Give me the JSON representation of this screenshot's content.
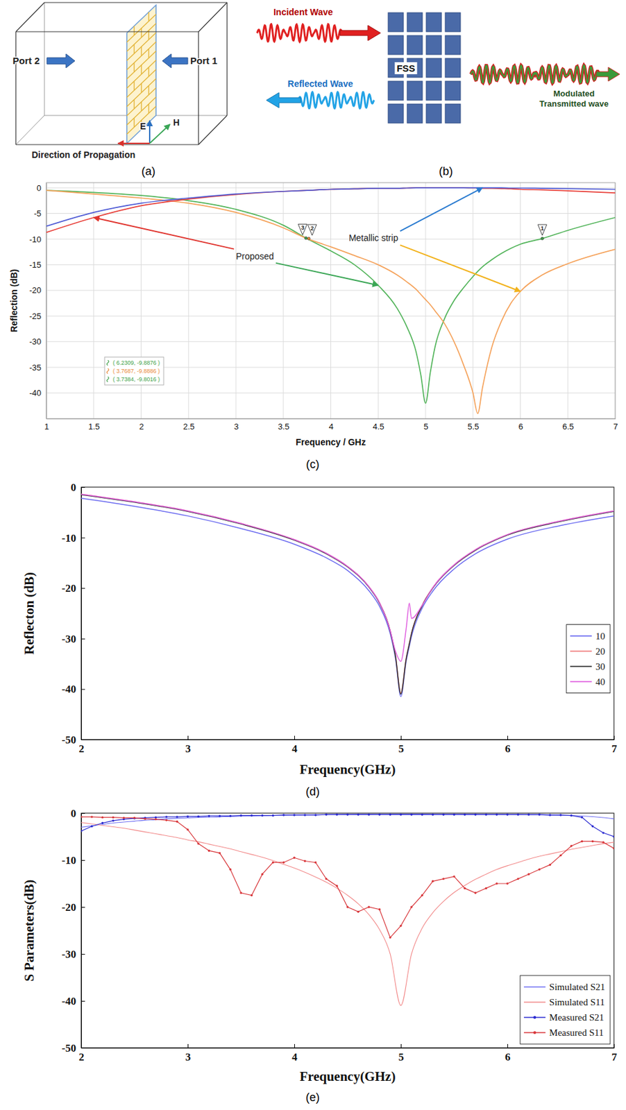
{
  "diagrams": [
    {
      "caption": "(a)",
      "labels": {
        "port_2": "Port 2",
        "port_1": "Port 1",
        "e_field": "E",
        "h_field": "H",
        "propagation": "Direction of Propagation"
      }
    },
    {
      "caption": "(b)",
      "labels": {
        "incident": "Incident Wave",
        "fss": "FSS",
        "reflected": "Reflected Wave",
        "transmitted": "Modulated Transmitted wave"
      }
    }
  ],
  "chart_data": [
    {
      "type": "line",
      "caption": "(c)",
      "x_label": "Frequency / GHz",
      "y_label": "Reflection (dB)",
      "xlim": [
        1,
        7
      ],
      "ylim": [
        -45,
        1
      ],
      "xticks": [
        1,
        1.5,
        2,
        2.5,
        3,
        3.5,
        4,
        4.5,
        5,
        5.5,
        6,
        6.5,
        7
      ],
      "yticks": [
        0,
        -5,
        -10,
        -15,
        -20,
        -25,
        -30,
        -35,
        -40
      ],
      "grid": true,
      "x": [
        1,
        1.5,
        2,
        2.5,
        3,
        3.5,
        3.75,
        4,
        4.25,
        4.5,
        4.7,
        4.8,
        4.9,
        4.95,
        5,
        5.05,
        5.1,
        5.2,
        5.3,
        5.4,
        5.5,
        5.55,
        5.6,
        5.7,
        5.8,
        5.9,
        6,
        6.23,
        6.5,
        7
      ],
      "series": [
        {
          "color": "#52b45a",
          "values": [
            -0.5,
            -0.9,
            -1.5,
            -2.5,
            -4.2,
            -7.3,
            -9.9,
            -12.3,
            -15,
            -19,
            -23.5,
            -27,
            -32,
            -36.5,
            -42,
            -36,
            -31,
            -25.5,
            -22,
            -19.5,
            -17.3,
            -16.3,
            -15.4,
            -14,
            -12.8,
            -11.8,
            -11,
            -9.9,
            -8.3,
            -5.8
          ]
        },
        {
          "color": "#f5a35c",
          "values": [
            -0.5,
            -1.2,
            -2,
            -3,
            -4.8,
            -7.8,
            -9.9,
            -11.5,
            -13.2,
            -15,
            -17,
            -18.3,
            -19.8,
            -20.8,
            -21.8,
            -22.8,
            -24,
            -26.5,
            -30,
            -34.5,
            -40,
            -44,
            -39,
            -31,
            -26,
            -22.5,
            -20.2,
            -17,
            -14.8,
            -12
          ]
        },
        {
          "color": "#e8403a",
          "values": [
            -8.7,
            -5.8,
            -3.5,
            -2.2,
            -1.3,
            -0.7,
            -0.5,
            -0.3,
            -0.2,
            -0.1,
            -0.1,
            -0.05,
            0,
            0,
            0,
            0,
            0,
            0,
            0,
            0,
            -0.05,
            -0.05,
            -0.1,
            -0.1,
            -0.15,
            -0.2,
            -0.3,
            -0.4,
            -0.6,
            -1
          ]
        },
        {
          "color": "#4f5bd5",
          "values": [
            -7.5,
            -4.8,
            -3,
            -2,
            -1.2,
            -0.7,
            -0.5,
            -0.3,
            -0.2,
            -0.1,
            -0.1,
            -0.05,
            0,
            0,
            0,
            0,
            0,
            0,
            0,
            0,
            0,
            0,
            0,
            0,
            0,
            -0.05,
            -0.05,
            -0.1,
            -0.15,
            -0.3
          ]
        }
      ],
      "markers": [
        {
          "label": "1",
          "x": 6.2309,
          "y": -9.8876,
          "readout": "( 6.2309, -9.8876 )",
          "color": "#3f9f48"
        },
        {
          "label": "2",
          "x": 3.7687,
          "y": -9.8886,
          "readout": "( 3.7687, -9.8886 )",
          "color": "#e8893a"
        },
        {
          "label": "3",
          "x": 3.7384,
          "y": -9.8016,
          "readout": "( 3.7384, -9.8016 )",
          "color": "#3f9f48"
        }
      ],
      "annotations": [
        {
          "text": "Proposed",
          "x": 3.2,
          "y": -13.3
        },
        {
          "text": "Metallic strip",
          "x": 4.45,
          "y": -9.8
        }
      ]
    },
    {
      "type": "line",
      "caption": "(d)",
      "x_label": "Frequency(GHz)",
      "y_label": "Reflecton (dB)",
      "xlim": [
        2,
        7
      ],
      "ylim": [
        -50,
        0
      ],
      "xticks": [
        2,
        3,
        4,
        5,
        6,
        7
      ],
      "yticks": [
        0,
        -10,
        -20,
        -30,
        -40,
        -50
      ],
      "legend": "right",
      "x": [
        2,
        2.5,
        3,
        3.5,
        4,
        4.3,
        4.5,
        4.7,
        4.8,
        4.9,
        4.95,
        5,
        5.05,
        5.08,
        5.1,
        5.2,
        5.3,
        5.5,
        5.7,
        6,
        6.5,
        7
      ],
      "series": [
        {
          "name": "10",
          "color": "#6b6bf0",
          "values": [
            -2.2,
            -3.8,
            -5.7,
            -8.2,
            -11.3,
            -14,
            -16.5,
            -20.5,
            -23.6,
            -29,
            -34,
            -41.5,
            -34.5,
            -31.5,
            -29.6,
            -24,
            -20.6,
            -16.2,
            -13.2,
            -10.3,
            -7.6,
            -5.7
          ]
        },
        {
          "name": "20",
          "color": "#f08080",
          "values": [
            -1.4,
            -2.9,
            -4.7,
            -7.2,
            -10.4,
            -13.1,
            -15.7,
            -19.7,
            -22.9,
            -28.4,
            -33.4,
            -40.8,
            -33.9,
            -30.9,
            -28.9,
            -23.4,
            -19.9,
            -15.4,
            -12.4,
            -9.4,
            -6.7,
            -4.7
          ]
        },
        {
          "name": "30",
          "color": "#303030",
          "values": [
            -1.5,
            -3,
            -4.8,
            -7.3,
            -10.5,
            -13.2,
            -15.8,
            -19.8,
            -23,
            -28.5,
            -33.5,
            -41,
            -34,
            -31,
            -29,
            -23.5,
            -20,
            -15.5,
            -12.5,
            -9.5,
            -6.8,
            -4.8
          ]
        },
        {
          "name": "40",
          "color": "#e060e0",
          "values": [
            -1.4,
            -2.9,
            -4.7,
            -7.2,
            -10.4,
            -13.1,
            -15.7,
            -19.7,
            -22.9,
            -28.4,
            -32.5,
            -34.5,
            -28,
            -23,
            -26,
            -23.4,
            -19.9,
            -15.4,
            -12.4,
            -9.4,
            -6.7,
            -4.7
          ]
        }
      ]
    },
    {
      "type": "line",
      "caption": "(e)",
      "x_label": "Frequency(GHz)",
      "y_label": "S Parameters(dB)",
      "xlim": [
        2,
        7
      ],
      "ylim": [
        -50,
        0
      ],
      "xticks": [
        2,
        3,
        4,
        5,
        6,
        7
      ],
      "yticks": [
        0,
        -10,
        -20,
        -30,
        -40,
        -50
      ],
      "legend": "lower right",
      "x": [
        2,
        2.1,
        2.2,
        2.3,
        2.4,
        2.5,
        2.6,
        2.7,
        2.8,
        2.9,
        3,
        3.1,
        3.2,
        3.3,
        3.4,
        3.5,
        3.6,
        3.7,
        3.8,
        3.9,
        4,
        4.1,
        4.2,
        4.3,
        4.4,
        4.5,
        4.6,
        4.7,
        4.8,
        4.9,
        5,
        5.1,
        5.2,
        5.3,
        5.4,
        5.5,
        5.6,
        5.7,
        5.8,
        5.9,
        6,
        6.1,
        6.2,
        6.3,
        6.4,
        6.5,
        6.6,
        6.7,
        6.8,
        6.9,
        7
      ],
      "series": [
        {
          "name": "Simulated S21",
          "color": "#6f6ff2",
          "values": [
            -3,
            -2.7,
            -2.4,
            -2.1,
            -1.9,
            -1.7,
            -1.5,
            -1.4,
            -1.2,
            -1.1,
            -1,
            -0.9,
            -0.85,
            -0.8,
            -0.7,
            -0.65,
            -0.6,
            -0.55,
            -0.5,
            -0.45,
            -0.4,
            -0.38,
            -0.35,
            -0.33,
            -0.3,
            -0.28,
            -0.26,
            -0.25,
            -0.24,
            -0.23,
            -0.22,
            -0.22,
            -0.22,
            -0.23,
            -0.23,
            -0.24,
            -0.25,
            -0.26,
            -0.27,
            -0.28,
            -0.3,
            -0.32,
            -0.35,
            -0.38,
            -0.42,
            -0.46,
            -0.5,
            -0.6,
            -0.75,
            -0.95,
            -1.2
          ]
        },
        {
          "name": "Simulated S11",
          "color": "#f28a8a",
          "values": [
            -2,
            -2.3,
            -2.6,
            -2.9,
            -3.2,
            -3.6,
            -4,
            -4.4,
            -4.8,
            -5.2,
            -5.7,
            -6.1,
            -6.6,
            -7.1,
            -7.6,
            -8.2,
            -8.8,
            -9.4,
            -10.1,
            -10.9,
            -11.7,
            -12.6,
            -13.6,
            -14.7,
            -16,
            -17.5,
            -19.3,
            -21.6,
            -24.8,
            -30,
            -41,
            -30,
            -24.5,
            -21.2,
            -18.8,
            -16.9,
            -15.4,
            -14.1,
            -13,
            -12,
            -11.2,
            -10.5,
            -9.8,
            -9.2,
            -8.7,
            -8.2,
            -7.7,
            -7.3,
            -6.9,
            -6.5,
            -6.2
          ]
        },
        {
          "name": "Measured S21",
          "color": "#2a2ad0",
          "marker": "dot",
          "values": [
            -3.8,
            -2.8,
            -2.1,
            -1.6,
            -1.3,
            -1.1,
            -1,
            -0.9,
            -0.8,
            -0.8,
            -0.7,
            -0.7,
            -0.6,
            -0.6,
            -0.6,
            -0.5,
            -0.5,
            -0.5,
            -0.5,
            -0.4,
            -0.4,
            -0.4,
            -0.4,
            -0.3,
            -0.3,
            -0.3,
            -0.3,
            -0.3,
            -0.3,
            -0.3,
            -0.3,
            -0.3,
            -0.3,
            -0.3,
            -0.3,
            -0.3,
            -0.3,
            -0.3,
            -0.3,
            -0.3,
            -0.3,
            -0.3,
            -0.3,
            -0.3,
            -0.4,
            -0.4,
            -0.5,
            -0.9,
            -2.8,
            -4.2,
            -5
          ]
        },
        {
          "name": "Measured S11",
          "color": "#d8363a",
          "marker": "dot",
          "values": [
            -0.8,
            -0.8,
            -0.9,
            -0.9,
            -1,
            -1,
            -1.2,
            -1.3,
            -1.5,
            -1.8,
            -3.5,
            -6.5,
            -8,
            -8.5,
            -12,
            -17,
            -17.5,
            -13,
            -10.5,
            -10.5,
            -9.5,
            -10.2,
            -10.5,
            -14,
            -15.5,
            -20,
            -21,
            -20,
            -20.5,
            -26.5,
            -24,
            -20,
            -17.5,
            -14.5,
            -14,
            -13.5,
            -16,
            -17,
            -16,
            -15,
            -15,
            -14,
            -13,
            -12,
            -11,
            -9,
            -7,
            -6,
            -6,
            -6.2,
            -7.5
          ]
        }
      ]
    }
  ]
}
